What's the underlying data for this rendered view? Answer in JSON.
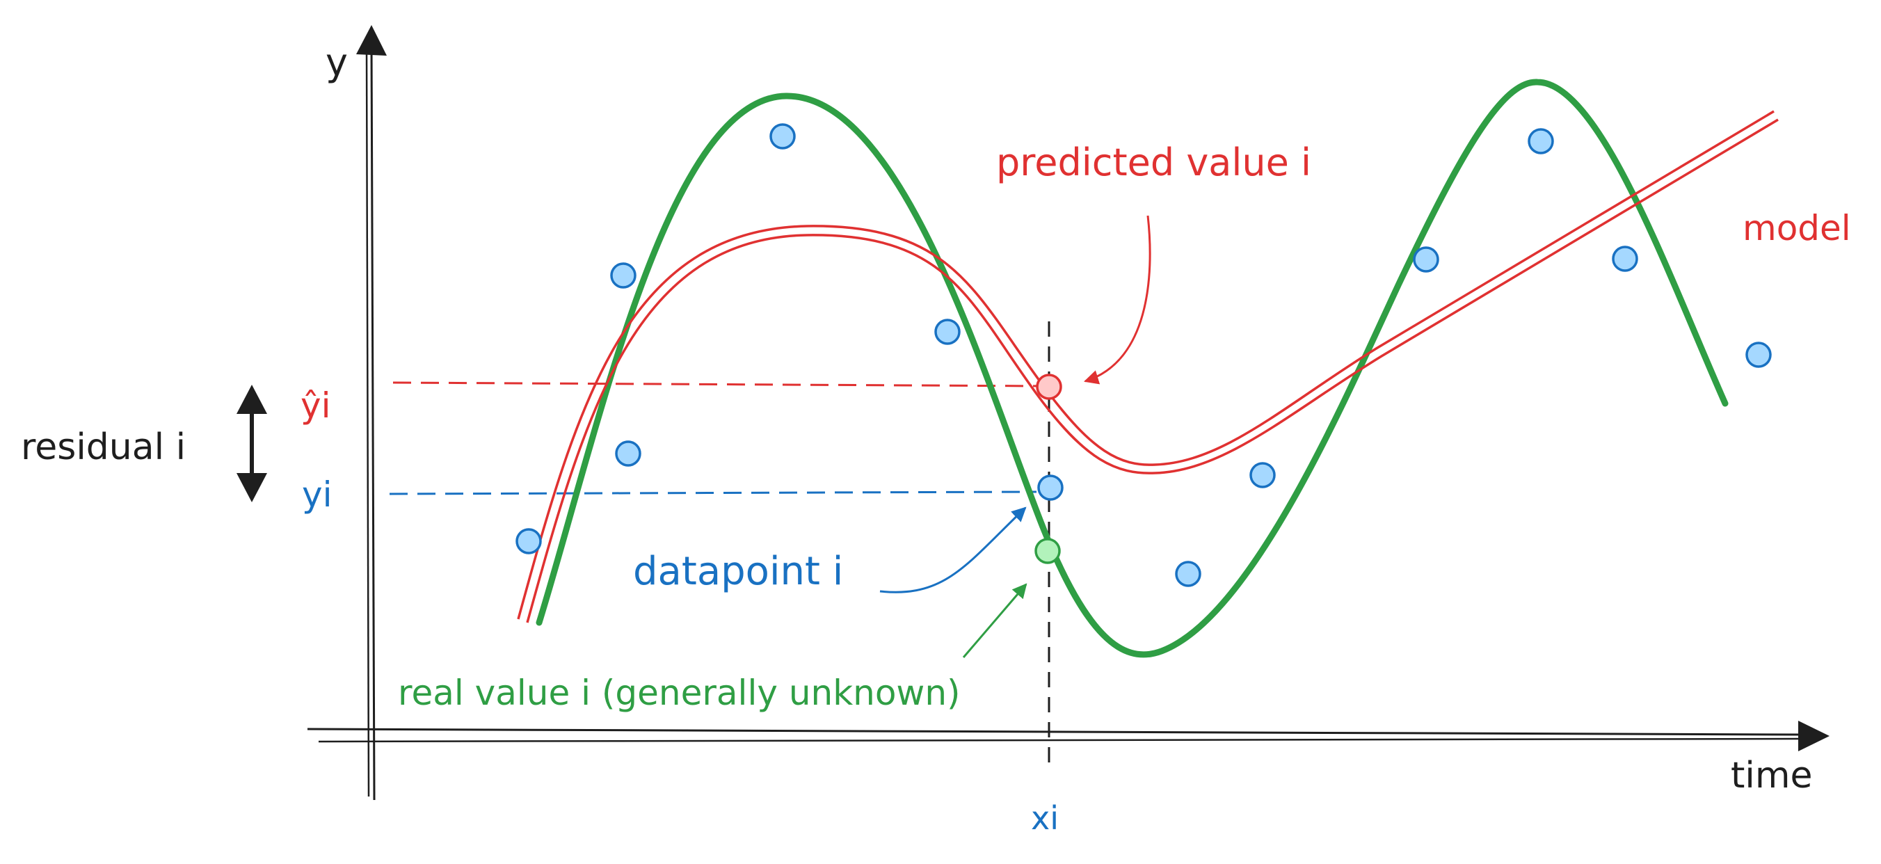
{
  "colors": {
    "ink": "#1e1e1e",
    "model": "#e03131",
    "data": "#1971c2",
    "data_fill": "#a5d8ff",
    "real": "#2f9e44",
    "real_fill": "#b2f2bb",
    "pred_fill": "#ffc9c9"
  },
  "axes": {
    "y_label": "y",
    "x_label": "time"
  },
  "labels": {
    "predicted_value": "predicted value i",
    "model": "model",
    "residual": "residual i",
    "y_hat": "ŷi",
    "y_i": "yi",
    "x_i": "xi",
    "datapoint": "datapoint i",
    "real_value": "real value i (generally unknown)"
  }
}
